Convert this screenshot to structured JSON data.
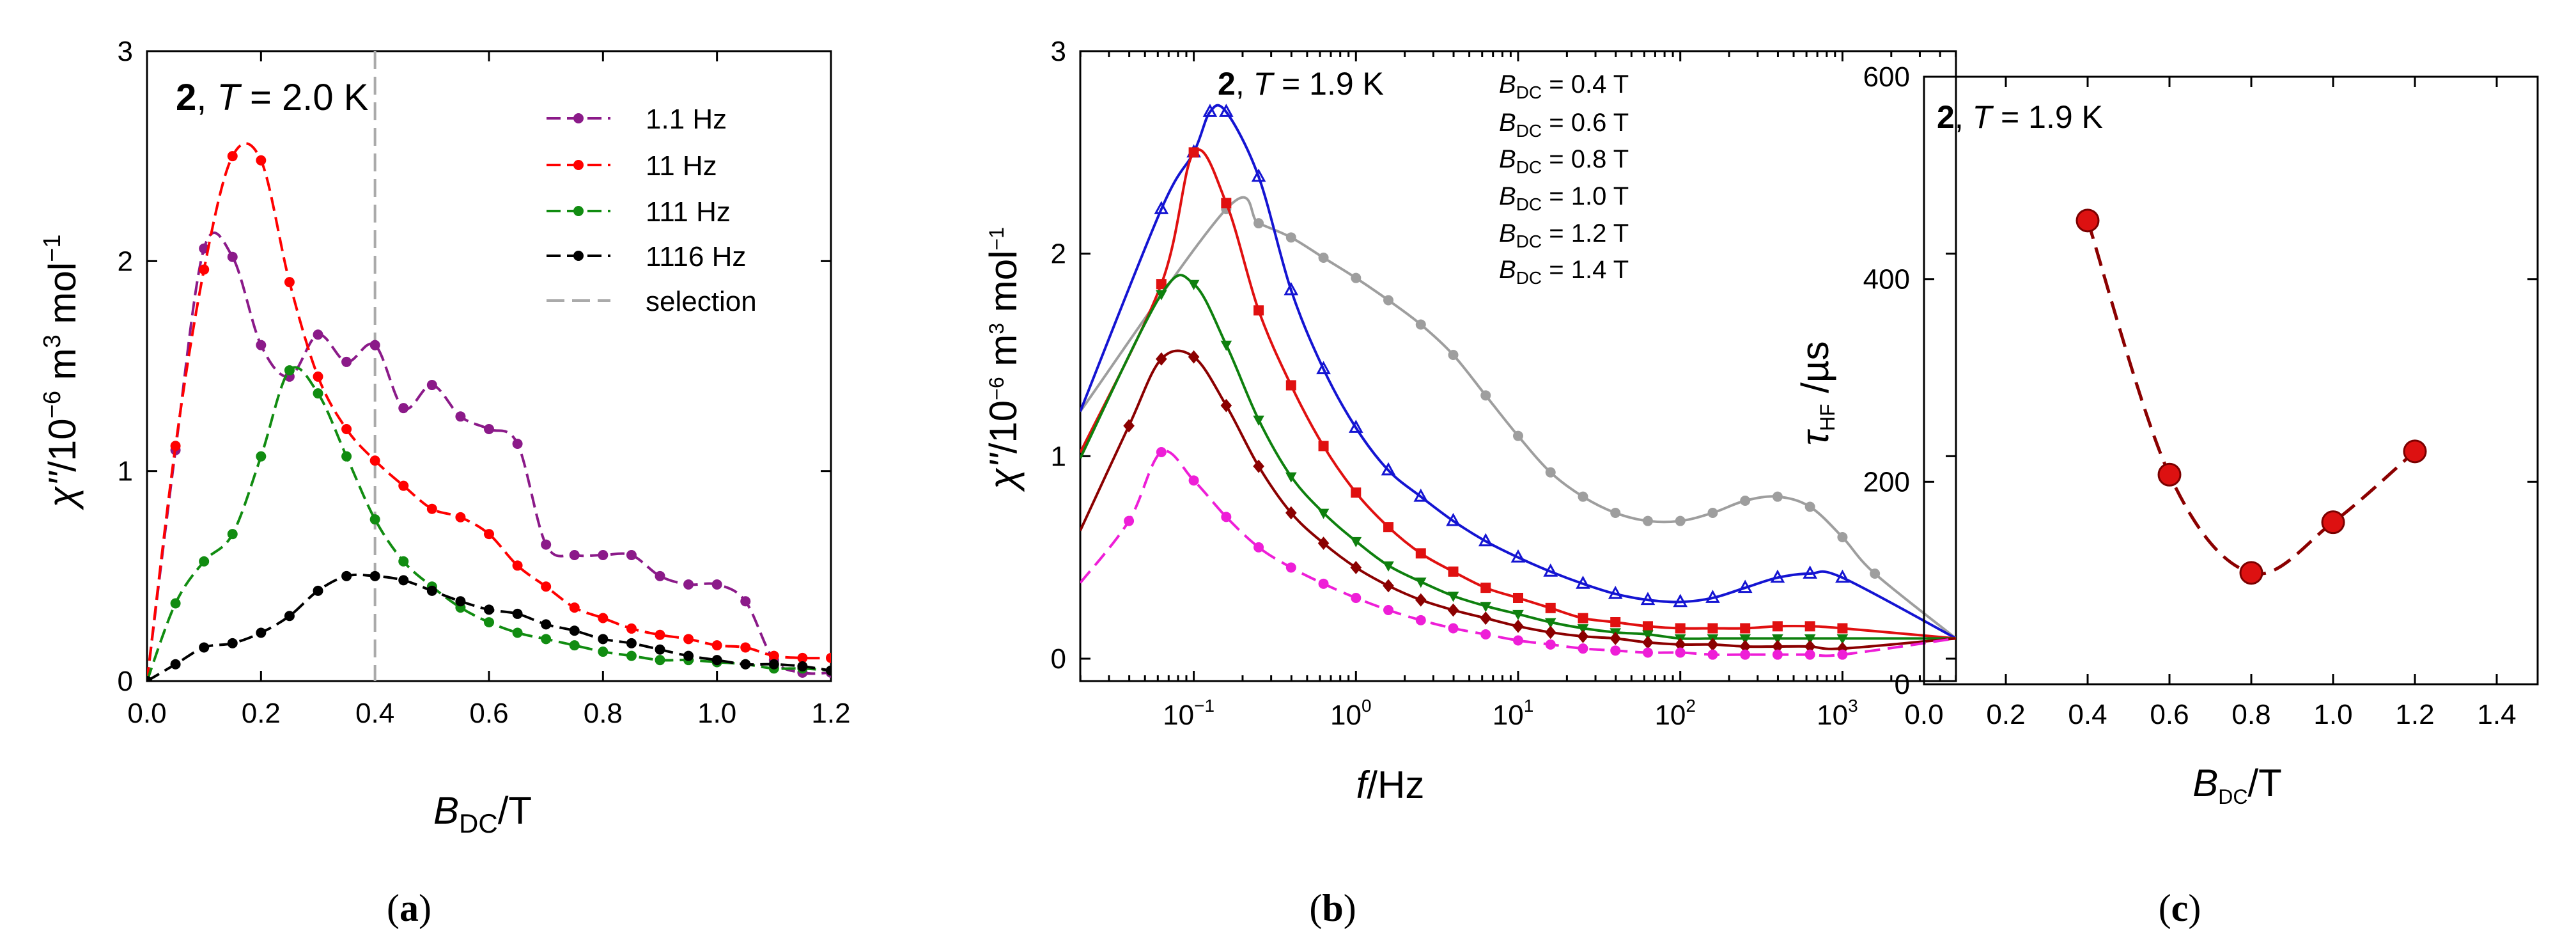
{
  "chart_data": [
    {
      "panel": "(a)",
      "type": "line",
      "title_compound": "2",
      "title_rest": ", T = 2.0 K",
      "xlabel": "B_DC/T",
      "ylabel": "χ''/10^-6 m^3 mol^-1",
      "xlim": [
        0,
        1.2
      ],
      "ylim": [
        0,
        3
      ],
      "xticks": [
        0.0,
        0.2,
        0.4,
        0.6,
        0.8,
        1.0,
        1.2
      ],
      "xtick_labels": [
        "0.0",
        "0.2",
        "0.4",
        "0.6",
        "0.8",
        "1.0",
        "1.2"
      ],
      "yticks": [
        0,
        1,
        2,
        3
      ],
      "ytick_labels": [
        "0",
        "1",
        "2",
        "3"
      ],
      "selection_x": 0.4,
      "legend": [
        "1.1 Hz",
        "11 Hz",
        "111 Hz",
        "1116 Hz",
        "selection"
      ],
      "series": [
        {
          "name": "1.1 Hz",
          "color": "#8b1a89",
          "x": [
            0,
            0.05,
            0.1,
            0.15,
            0.2,
            0.25,
            0.3,
            0.35,
            0.4,
            0.45,
            0.5,
            0.55,
            0.6,
            0.65,
            0.7,
            0.75,
            0.8,
            0.85,
            0.9,
            0.95,
            1.0,
            1.05,
            1.1,
            1.15,
            1.2
          ],
          "y": [
            0.0,
            1.1,
            2.06,
            2.02,
            1.6,
            1.45,
            1.65,
            1.52,
            1.6,
            1.3,
            1.41,
            1.26,
            1.2,
            1.13,
            0.65,
            0.6,
            0.6,
            0.6,
            0.5,
            0.46,
            0.46,
            0.38,
            0.1,
            0.04,
            0.04
          ]
        },
        {
          "name": "11 Hz",
          "color": "#ff0000",
          "x": [
            0,
            0.05,
            0.1,
            0.15,
            0.2,
            0.25,
            0.3,
            0.35,
            0.4,
            0.45,
            0.5,
            0.55,
            0.6,
            0.65,
            0.7,
            0.75,
            0.8,
            0.85,
            0.9,
            0.95,
            1.0,
            1.05,
            1.1,
            1.15,
            1.2
          ],
          "y": [
            0.0,
            1.12,
            1.96,
            2.5,
            2.48,
            1.9,
            1.45,
            1.2,
            1.05,
            0.93,
            0.82,
            0.78,
            0.7,
            0.55,
            0.45,
            0.35,
            0.3,
            0.25,
            0.22,
            0.2,
            0.17,
            0.16,
            0.12,
            0.11,
            0.11
          ]
        },
        {
          "name": "111 Hz",
          "color": "#118c11",
          "x": [
            0,
            0.05,
            0.1,
            0.15,
            0.2,
            0.25,
            0.3,
            0.35,
            0.4,
            0.45,
            0.5,
            0.55,
            0.6,
            0.65,
            0.7,
            0.75,
            0.8,
            0.85,
            0.9,
            0.95,
            1.0,
            1.05,
            1.1,
            1.15,
            1.2
          ],
          "y": [
            0.0,
            0.37,
            0.57,
            0.7,
            1.07,
            1.48,
            1.37,
            1.07,
            0.77,
            0.57,
            0.45,
            0.35,
            0.28,
            0.23,
            0.2,
            0.17,
            0.14,
            0.12,
            0.1,
            0.1,
            0.09,
            0.08,
            0.06,
            0.06,
            0.05
          ]
        },
        {
          "name": "1116 Hz",
          "color": "#000000",
          "x": [
            0,
            0.05,
            0.1,
            0.15,
            0.2,
            0.25,
            0.3,
            0.35,
            0.4,
            0.45,
            0.5,
            0.55,
            0.6,
            0.65,
            0.7,
            0.75,
            0.8,
            0.85,
            0.9,
            0.95,
            1.0,
            1.05,
            1.1,
            1.15,
            1.2
          ],
          "y": [
            0.0,
            0.08,
            0.16,
            0.18,
            0.23,
            0.31,
            0.43,
            0.5,
            0.5,
            0.48,
            0.43,
            0.38,
            0.34,
            0.32,
            0.27,
            0.24,
            0.2,
            0.18,
            0.15,
            0.12,
            0.1,
            0.08,
            0.08,
            0.07,
            0.05
          ]
        }
      ]
    },
    {
      "panel": "(b)",
      "type": "scatter",
      "title_compound": "2",
      "title_rest": ", T = 1.9 K",
      "xlabel": "f/Hz",
      "ylabel": "χ''/10^-6 m^3 mol^-1",
      "xscale": "log",
      "xlim_log10": [
        -1.7,
        3.7
      ],
      "ylim": [
        0,
        3
      ],
      "xtick_decades": [
        -1,
        0,
        1,
        2,
        3
      ],
      "xtick_labels": [
        "10^-1",
        "10^0",
        "10^1",
        "10^2",
        "10^3"
      ],
      "yticks": [
        0,
        1,
        2,
        3
      ],
      "ytick_labels": [
        "0",
        "1",
        "2",
        "3"
      ],
      "legend": [
        "B_DC = 0.4 T",
        "B_DC = 0.6 T",
        "B_DC = 0.8 T",
        "B_DC = 1.0 T",
        "B_DC = 1.2 T",
        "B_DC = 1.4 T"
      ],
      "series": [
        {
          "name": "B_DC = 0.4 T",
          "color": "#9e9e9e",
          "marker": "circle",
          "fit": "solid",
          "log_f": [
            -0.8,
            -0.6,
            -0.4,
            -0.2,
            0.0,
            0.2,
            0.4,
            0.6,
            0.8,
            1.0,
            1.2,
            1.4,
            1.6,
            1.8,
            2.0,
            2.2,
            2.4,
            2.6,
            2.8,
            3.0,
            3.2
          ],
          "y": [
            2.22,
            2.15,
            2.08,
            1.98,
            1.88,
            1.77,
            1.65,
            1.5,
            1.3,
            1.1,
            0.92,
            0.8,
            0.72,
            0.68,
            0.68,
            0.72,
            0.78,
            0.8,
            0.75,
            0.6,
            0.42
          ]
        },
        {
          "name": "B_DC = 0.6 T",
          "color": "#1414d2",
          "marker": "triangle-up",
          "fit": "solid",
          "log_f": [
            -1.2,
            -1.0,
            -0.9,
            -0.8,
            -0.6,
            -0.4,
            -0.2,
            0.0,
            0.2,
            0.4,
            0.6,
            0.8,
            1.0,
            1.2,
            1.4,
            1.6,
            1.8,
            2.0,
            2.2,
            2.4,
            2.6,
            2.8,
            3.0
          ],
          "y": [
            2.22,
            2.5,
            2.7,
            2.7,
            2.38,
            1.82,
            1.43,
            1.14,
            0.93,
            0.8,
            0.68,
            0.58,
            0.5,
            0.43,
            0.37,
            0.32,
            0.29,
            0.28,
            0.3,
            0.35,
            0.4,
            0.42,
            0.4
          ]
        },
        {
          "name": "B_DC = 0.8 T",
          "color": "#e01010",
          "marker": "square",
          "fit": "solid",
          "log_f": [
            -1.2,
            -1.0,
            -0.8,
            -0.6,
            -0.4,
            -0.2,
            0.0,
            0.2,
            0.4,
            0.6,
            0.8,
            1.0,
            1.2,
            1.4,
            1.6,
            1.8,
            2.0,
            2.2,
            2.4,
            2.6,
            2.8,
            3.0
          ],
          "y": [
            1.85,
            2.5,
            2.25,
            1.72,
            1.35,
            1.05,
            0.82,
            0.65,
            0.52,
            0.43,
            0.35,
            0.3,
            0.25,
            0.2,
            0.18,
            0.16,
            0.15,
            0.15,
            0.15,
            0.16,
            0.16,
            0.15
          ]
        },
        {
          "name": "B_DC = 1.0 T",
          "color": "#0e800e",
          "marker": "triangle-down",
          "fit": "solid",
          "log_f": [
            -1.2,
            -1.0,
            -0.8,
            -0.6,
            -0.4,
            -0.2,
            0.0,
            0.2,
            0.4,
            0.6,
            0.8,
            1.0,
            1.2,
            1.4,
            1.6,
            1.8,
            2.0,
            2.2,
            2.4,
            2.6,
            2.8,
            3.0
          ],
          "y": [
            1.8,
            1.85,
            1.55,
            1.18,
            0.9,
            0.72,
            0.58,
            0.46,
            0.38,
            0.31,
            0.26,
            0.22,
            0.18,
            0.15,
            0.13,
            0.12,
            0.1,
            0.1,
            0.1,
            0.1,
            0.1,
            0.1
          ]
        },
        {
          "name": "B_DC = 1.2 T",
          "color": "#8b0000",
          "marker": "diamond",
          "fit": "solid",
          "log_f": [
            -1.4,
            -1.2,
            -1.0,
            -0.8,
            -0.6,
            -0.4,
            -0.2,
            0.0,
            0.2,
            0.4,
            0.6,
            0.8,
            1.0,
            1.2,
            1.4,
            1.6,
            1.8,
            2.0,
            2.2,
            2.4,
            2.6,
            2.8,
            3.0
          ],
          "y": [
            1.15,
            1.48,
            1.49,
            1.25,
            0.95,
            0.72,
            0.57,
            0.45,
            0.36,
            0.29,
            0.24,
            0.2,
            0.16,
            0.13,
            0.11,
            0.1,
            0.08,
            0.07,
            0.07,
            0.06,
            0.06,
            0.06,
            0.05
          ]
        },
        {
          "name": "B_DC = 1.4 T",
          "color": "#ee1ed7",
          "marker": "circle",
          "fit": "dashed",
          "log_f": [
            -1.4,
            -1.2,
            -1.0,
            -0.8,
            -0.6,
            -0.4,
            -0.2,
            0.0,
            0.2,
            0.4,
            0.6,
            0.8,
            1.0,
            1.2,
            1.4,
            1.6,
            1.8,
            2.0,
            2.2,
            2.4,
            2.6,
            2.8,
            3.0
          ],
          "y": [
            0.68,
            1.02,
            0.88,
            0.7,
            0.55,
            0.45,
            0.37,
            0.3,
            0.24,
            0.19,
            0.15,
            0.12,
            0.09,
            0.07,
            0.05,
            0.04,
            0.03,
            0.03,
            0.02,
            0.02,
            0.02,
            0.02,
            0.02
          ]
        }
      ]
    },
    {
      "panel": "(c)",
      "type": "scatter",
      "title_compound": "2",
      "title_rest": ", T = 1.9 K",
      "xlabel": "B_DC/T",
      "ylabel": "τ_HF /µs",
      "xlim": [
        0,
        1.5
      ],
      "ylim": [
        0,
        600
      ],
      "xticks": [
        0.0,
        0.2,
        0.4,
        0.6,
        0.8,
        1.0,
        1.2,
        1.4
      ],
      "xtick_labels": [
        "0.0",
        "0.2",
        "0.4",
        "0.6",
        "0.8",
        "1.0",
        "1.2",
        "1.4"
      ],
      "yticks": [
        0,
        200,
        400,
        600
      ],
      "ytick_labels": [
        "0",
        "200",
        "400",
        "600"
      ],
      "series": [
        {
          "name": "tau_HF",
          "color": "#dd1111",
          "line_color": "#8b0000",
          "x": [
            0.4,
            0.6,
            0.8,
            1.0,
            1.2
          ],
          "y": [
            458,
            207,
            110,
            160,
            230
          ]
        }
      ]
    }
  ],
  "captions": [
    "(a)",
    "(b)",
    "(c)"
  ]
}
